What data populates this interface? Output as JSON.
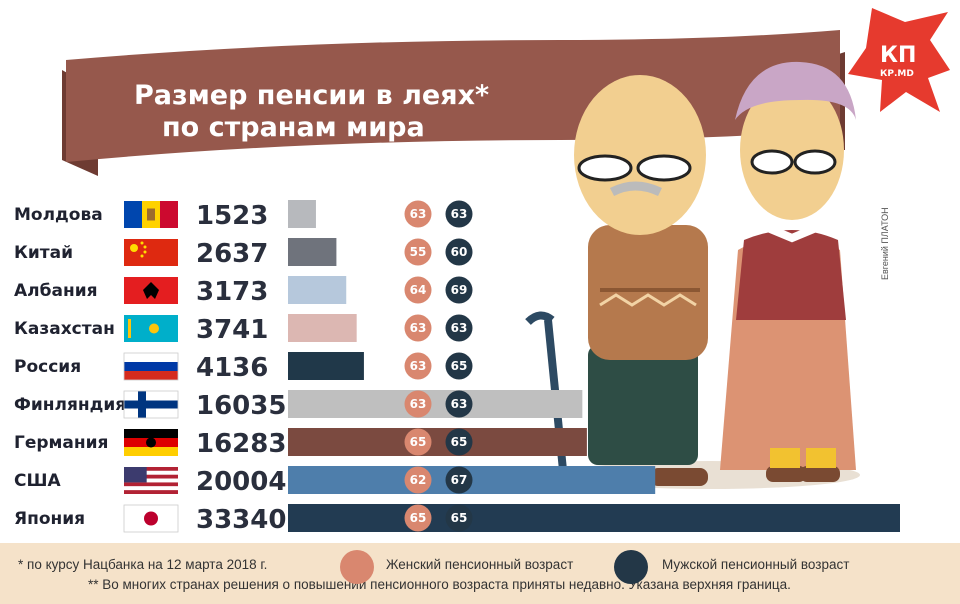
{
  "title": {
    "line1": "Размер пенсии в леях*",
    "line2": "по странам мира"
  },
  "logo": {
    "top": "КП",
    "bottom": "КР.МD"
  },
  "credit": "Евгений ПЛАТОН",
  "colors": {
    "banner": "#96584c",
    "banner_edge": "#6e3b32",
    "female_age": "#d9876f",
    "male_age": "#233747",
    "footer_bg": "#f5e2c9"
  },
  "chart_data": {
    "type": "bar",
    "title": "Размер пенсии в леях* по странам мира",
    "categories": [
      "Молдова",
      "Китай",
      "Албания",
      "Казахстан",
      "Россия",
      "Финляндия",
      "Германия",
      "США",
      "Япония"
    ],
    "values": [
      1523,
      2637,
      3173,
      3741,
      4136,
      16035,
      16283,
      20004,
      33340
    ],
    "value_labels": [
      "1523",
      "2637",
      "3173",
      "3741",
      "4136",
      "16035",
      "16283",
      "20004",
      "33340"
    ],
    "bar_colors": [
      "#b7b9bd",
      "#6f737c",
      "#b6c8dc",
      "#dcb7b2",
      "#203849",
      "#bfbfbf",
      "#7b4a40",
      "#4e7eab",
      "#223b52"
    ],
    "female_retirement_age": [
      63,
      55,
      64,
      63,
      63,
      63,
      65,
      62,
      65
    ],
    "male_retirement_age": [
      63,
      60,
      69,
      63,
      65,
      63,
      65,
      67,
      65
    ],
    "flags": [
      "moldova-flag",
      "china-flag",
      "albania-flag",
      "kazakhstan-flag",
      "russia-flag",
      "finland-flag",
      "germany-flag",
      "usa-flag",
      "japan-flag"
    ],
    "xlim": [
      0,
      33340
    ]
  },
  "legend": {
    "female": "Женский пенсионный возраст",
    "male": "Мужской пенсионный возраст"
  },
  "notes": {
    "note1": "* по курсу Нацбанка на 12 марта 2018 г.",
    "note2": "** Во многих странах решения о повышении пенсионного возраста приняты недавно. Указана верхняя граница."
  }
}
